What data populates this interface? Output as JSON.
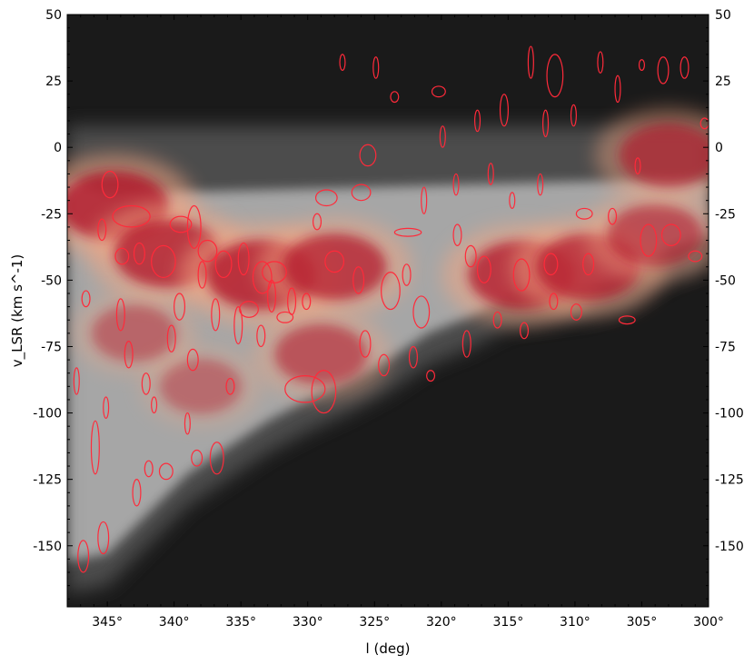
{
  "chart_data": {
    "type": "heatmap",
    "xlabel": "l (deg)",
    "ylabel": "v_LSR (km s^-1)",
    "xlim": [
      348,
      300
    ],
    "ylim": [
      -173,
      50
    ],
    "x_ticks": [
      {
        "value": 345,
        "label": "345°"
      },
      {
        "value": 340,
        "label": "340°"
      },
      {
        "value": 335,
        "label": "335°"
      },
      {
        "value": 330,
        "label": "330°"
      },
      {
        "value": 325,
        "label": "325°"
      },
      {
        "value": 320,
        "label": "320°"
      },
      {
        "value": 315,
        "label": "315°"
      },
      {
        "value": 310,
        "label": "310°"
      },
      {
        "value": 305,
        "label": "305°"
      },
      {
        "value": 300,
        "label": "300°"
      }
    ],
    "y_ticks": [
      {
        "value": 50,
        "label": "50"
      },
      {
        "value": 25,
        "label": "25"
      },
      {
        "value": 0,
        "label": "0"
      },
      {
        "value": -25,
        "label": "-25"
      },
      {
        "value": -50,
        "label": "-50"
      },
      {
        "value": -75,
        "label": "-75"
      },
      {
        "value": -100,
        "label": "-100"
      },
      {
        "value": -125,
        "label": "-125"
      },
      {
        "value": -150,
        "label": "-150"
      }
    ],
    "grid": false,
    "colors": {
      "background": "#1a1a1a",
      "low": "#555555",
      "mid": "#f0f0f0",
      "high": "#b2182b",
      "clouds": "#ff2a3a"
    },
    "emission_envelope": {
      "l": [
        348,
        345,
        342,
        339,
        336,
        333,
        330,
        327,
        324,
        321,
        318,
        315,
        312,
        309,
        306,
        303,
        300
      ],
      "v_min": [
        -168,
        -165,
        -150,
        -135,
        -125,
        -115,
        -107,
        -100,
        -92,
        -82,
        -76,
        -68,
        -66,
        -64,
        -60,
        -50,
        -45
      ],
      "v_max": [
        8,
        8,
        8,
        8,
        8,
        8,
        8,
        8,
        8,
        8,
        8,
        8,
        8,
        8,
        8,
        8,
        8
      ]
    },
    "intensity_peaks": [
      {
        "l": 344.5,
        "v": -22,
        "strength": 1.0
      },
      {
        "l": 340.5,
        "v": -40,
        "strength": 0.95
      },
      {
        "l": 333.5,
        "v": -48,
        "strength": 1.0
      },
      {
        "l": 328,
        "v": -45,
        "strength": 0.9
      },
      {
        "l": 329,
        "v": -78,
        "strength": 0.7
      },
      {
        "l": 314,
        "v": -48,
        "strength": 0.95
      },
      {
        "l": 309,
        "v": -45,
        "strength": 0.9
      },
      {
        "l": 304,
        "v": -33,
        "strength": 0.75
      },
      {
        "l": 303,
        "v": -3,
        "strength": 0.8
      },
      {
        "l": 338,
        "v": -90,
        "strength": 0.5
      },
      {
        "l": 343,
        "v": -70,
        "strength": 0.55
      }
    ],
    "clouds": [
      {
        "l": 344.8,
        "v": -14,
        "dl": 0.6,
        "dv": 5
      },
      {
        "l": 343.2,
        "v": -26,
        "dl": 1.4,
        "dv": 4
      },
      {
        "l": 340.8,
        "v": -43,
        "dl": 0.9,
        "dv": 6
      },
      {
        "l": 339.5,
        "v": -29,
        "dl": 0.8,
        "dv": 3
      },
      {
        "l": 338.5,
        "v": -30,
        "dl": 0.5,
        "dv": 8
      },
      {
        "l": 337.5,
        "v": -39,
        "dl": 0.7,
        "dv": 4
      },
      {
        "l": 336.3,
        "v": -44,
        "dl": 0.6,
        "dv": 5
      },
      {
        "l": 333.4,
        "v": -49,
        "dl": 0.7,
        "dv": 6
      },
      {
        "l": 332.5,
        "v": -47,
        "dl": 0.9,
        "dv": 4
      },
      {
        "l": 331.7,
        "v": -64,
        "dl": 0.6,
        "dv": 2
      },
      {
        "l": 328,
        "v": -43,
        "dl": 0.7,
        "dv": 4
      },
      {
        "l": 330.2,
        "v": -91,
        "dl": 1.5,
        "dv": 5
      },
      {
        "l": 328.8,
        "v": -92,
        "dl": 0.9,
        "dv": 8
      },
      {
        "l": 328.6,
        "v": -19,
        "dl": 0.8,
        "dv": 3
      },
      {
        "l": 326,
        "v": -17,
        "dl": 0.7,
        "dv": 3
      },
      {
        "l": 325.5,
        "v": -3,
        "dl": 0.6,
        "dv": 4
      },
      {
        "l": 323.8,
        "v": -54,
        "dl": 0.7,
        "dv": 7
      },
      {
        "l": 322.5,
        "v": -32,
        "dl": 1.0,
        "dv": 1.5
      },
      {
        "l": 321.5,
        "v": -62,
        "dl": 0.6,
        "dv": 6
      },
      {
        "l": 320.2,
        "v": 21,
        "dl": 0.5,
        "dv": 2
      },
      {
        "l": 317.8,
        "v": -41,
        "dl": 0.4,
        "dv": 4
      },
      {
        "l": 316.8,
        "v": -46,
        "dl": 0.5,
        "dv": 5
      },
      {
        "l": 314,
        "v": -48,
        "dl": 0.6,
        "dv": 6
      },
      {
        "l": 311.5,
        "v": 27,
        "dl": 0.6,
        "dv": 8
      },
      {
        "l": 311.8,
        "v": -44,
        "dl": 0.5,
        "dv": 4
      },
      {
        "l": 309,
        "v": -44,
        "dl": 0.4,
        "dv": 4
      },
      {
        "l": 304.5,
        "v": -35,
        "dl": 0.6,
        "dv": 6
      },
      {
        "l": 303.4,
        "v": 29,
        "dl": 0.4,
        "dv": 5
      },
      {
        "l": 302.8,
        "v": -33,
        "dl": 0.7,
        "dv": 4
      },
      {
        "l": 301,
        "v": -41,
        "dl": 0.5,
        "dv": 2
      },
      {
        "l": 300.3,
        "v": 9,
        "dl": 0.3,
        "dv": 2
      },
      {
        "l": 306.1,
        "v": -65,
        "dl": 0.6,
        "dv": 1.5
      },
      {
        "l": 346.8,
        "v": -154,
        "dl": 0.4,
        "dv": 6
      },
      {
        "l": 345.3,
        "v": -147,
        "dl": 0.4,
        "dv": 6
      },
      {
        "l": 336.8,
        "v": -117,
        "dl": 0.5,
        "dv": 6
      },
      {
        "l": 340.6,
        "v": -122,
        "dl": 0.5,
        "dv": 3
      },
      {
        "l": 345.9,
        "v": -113,
        "dl": 0.3,
        "dv": 10
      },
      {
        "l": 342.8,
        "v": -130,
        "dl": 0.3,
        "dv": 5
      },
      {
        "l": 341.9,
        "v": -121,
        "dl": 0.3,
        "dv": 3
      },
      {
        "l": 338.3,
        "v": -117,
        "dl": 0.4,
        "dv": 3
      },
      {
        "l": 340.2,
        "v": -72,
        "dl": 0.3,
        "dv": 5
      },
      {
        "l": 338.6,
        "v": -80,
        "dl": 0.4,
        "dv": 4
      },
      {
        "l": 335.8,
        "v": -90,
        "dl": 0.3,
        "dv": 3
      },
      {
        "l": 334.4,
        "v": -61,
        "dl": 0.7,
        "dv": 3
      },
      {
        "l": 333.5,
        "v": -71,
        "dl": 0.3,
        "dv": 4
      },
      {
        "l": 325.7,
        "v": -74,
        "dl": 0.4,
        "dv": 5
      },
      {
        "l": 324.3,
        "v": -82,
        "dl": 0.4,
        "dv": 4
      },
      {
        "l": 322.1,
        "v": -79,
        "dl": 0.3,
        "dv": 4
      },
      {
        "l": 320.8,
        "v": -86,
        "dl": 0.3,
        "dv": 2
      },
      {
        "l": 318.1,
        "v": -74,
        "dl": 0.3,
        "dv": 5
      },
      {
        "l": 315.8,
        "v": -65,
        "dl": 0.3,
        "dv": 3
      },
      {
        "l": 313.8,
        "v": -69,
        "dl": 0.3,
        "dv": 3
      },
      {
        "l": 311.6,
        "v": -58,
        "dl": 0.3,
        "dv": 3
      },
      {
        "l": 309.9,
        "v": -62,
        "dl": 0.4,
        "dv": 3
      },
      {
        "l": 343.9,
        "v": -41,
        "dl": 0.5,
        "dv": 3
      },
      {
        "l": 342.6,
        "v": -40,
        "dl": 0.4,
        "dv": 4
      },
      {
        "l": 346.6,
        "v": -57,
        "dl": 0.3,
        "dv": 3
      },
      {
        "l": 345.4,
        "v": -31,
        "dl": 0.3,
        "dv": 4
      },
      {
        "l": 347.3,
        "v": -88,
        "dl": 0.2,
        "dv": 5
      },
      {
        "l": 343.4,
        "v": -78,
        "dl": 0.3,
        "dv": 5
      },
      {
        "l": 342.1,
        "v": -89,
        "dl": 0.3,
        "dv": 4
      },
      {
        "l": 341.5,
        "v": -97,
        "dl": 0.2,
        "dv": 3
      },
      {
        "l": 334.8,
        "v": -42,
        "dl": 0.4,
        "dv": 6
      },
      {
        "l": 336.9,
        "v": -63,
        "dl": 0.3,
        "dv": 6
      },
      {
        "l": 331.2,
        "v": -58,
        "dl": 0.3,
        "dv": 5
      },
      {
        "l": 329.3,
        "v": -28,
        "dl": 0.3,
        "dv": 3
      },
      {
        "l": 327.4,
        "v": 32,
        "dl": 0.2,
        "dv": 3
      },
      {
        "l": 324.9,
        "v": 30,
        "dl": 0.2,
        "dv": 4
      },
      {
        "l": 323.5,
        "v": 19,
        "dl": 0.3,
        "dv": 2
      },
      {
        "l": 319.9,
        "v": 4,
        "dl": 0.2,
        "dv": 4
      },
      {
        "l": 318.9,
        "v": -14,
        "dl": 0.2,
        "dv": 4
      },
      {
        "l": 317.3,
        "v": 10,
        "dl": 0.2,
        "dv": 4
      },
      {
        "l": 315.3,
        "v": 14,
        "dl": 0.3,
        "dv": 6
      },
      {
        "l": 313.3,
        "v": 32,
        "dl": 0.2,
        "dv": 6
      },
      {
        "l": 312.2,
        "v": 9,
        "dl": 0.2,
        "dv": 5
      },
      {
        "l": 310.1,
        "v": 12,
        "dl": 0.2,
        "dv": 4
      },
      {
        "l": 308.1,
        "v": 32,
        "dl": 0.2,
        "dv": 4
      },
      {
        "l": 306.8,
        "v": 22,
        "dl": 0.2,
        "dv": 5
      },
      {
        "l": 305.0,
        "v": 31,
        "dl": 0.2,
        "dv": 2
      },
      {
        "l": 301.8,
        "v": 30,
        "dl": 0.3,
        "dv": 4
      },
      {
        "l": 307.2,
        "v": -26,
        "dl": 0.3,
        "dv": 3
      },
      {
        "l": 305.3,
        "v": -7,
        "dl": 0.2,
        "dv": 3
      },
      {
        "l": 309.3,
        "v": -25,
        "dl": 0.6,
        "dv": 2
      },
      {
        "l": 312.6,
        "v": -14,
        "dl": 0.2,
        "dv": 4
      },
      {
        "l": 314.7,
        "v": -20,
        "dl": 0.2,
        "dv": 3
      },
      {
        "l": 316.3,
        "v": -10,
        "dl": 0.2,
        "dv": 4
      },
      {
        "l": 318.8,
        "v": -33,
        "dl": 0.3,
        "dv": 4
      },
      {
        "l": 321.3,
        "v": -20,
        "dl": 0.2,
        "dv": 5
      },
      {
        "l": 322.6,
        "v": -48,
        "dl": 0.3,
        "dv": 4
      },
      {
        "l": 326.2,
        "v": -50,
        "dl": 0.4,
        "dv": 5
      },
      {
        "l": 330.1,
        "v": -58,
        "dl": 0.3,
        "dv": 3
      },
      {
        "l": 332.7,
        "v": -56,
        "dl": 0.3,
        "dv": 6
      },
      {
        "l": 335.2,
        "v": -67,
        "dl": 0.3,
        "dv": 7
      },
      {
        "l": 337.9,
        "v": -48,
        "dl": 0.3,
        "dv": 5
      },
      {
        "l": 339.6,
        "v": -60,
        "dl": 0.4,
        "dv": 5
      },
      {
        "l": 344.0,
        "v": -63,
        "dl": 0.3,
        "dv": 6
      },
      {
        "l": 345.1,
        "v": -98,
        "dl": 0.2,
        "dv": 4
      },
      {
        "l": 339.0,
        "v": -104,
        "dl": 0.2,
        "dv": 4
      }
    ]
  }
}
